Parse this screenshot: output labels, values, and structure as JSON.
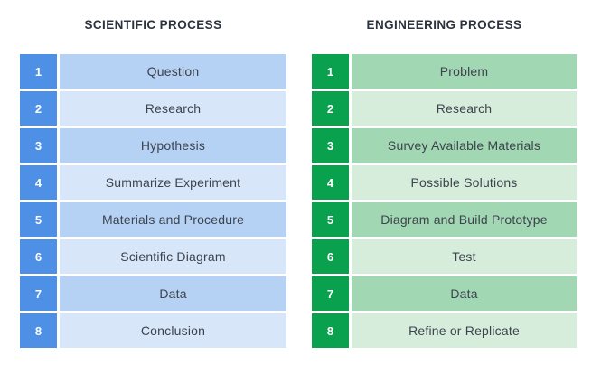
{
  "colors": {
    "background": "#ffffff",
    "title_text": "#2d333e",
    "step_text": "#3d434c",
    "number_text": "#ffffff"
  },
  "columns": [
    {
      "id": "scientific",
      "title": "SCIENTIFIC PROCESS",
      "accent": "#4d90e5",
      "row_bg_odd": "#b5d2f4",
      "row_bg_even": "#d8e6fa",
      "steps": [
        {
          "number": "1",
          "label": "Question"
        },
        {
          "number": "2",
          "label": "Research"
        },
        {
          "number": "3",
          "label": "Hypothesis"
        },
        {
          "number": "4",
          "label": "Summarize Experiment"
        },
        {
          "number": "5",
          "label": "Materials and Procedure"
        },
        {
          "number": "6",
          "label": "Scientific Diagram"
        },
        {
          "number": "7",
          "label": "Data"
        },
        {
          "number": "8",
          "label": "Conclusion"
        }
      ]
    },
    {
      "id": "engineering",
      "title": "ENGINEERING PROCESS",
      "accent": "#0aa14e",
      "row_bg_odd": "#a2d7b4",
      "row_bg_even": "#d6eddc",
      "steps": [
        {
          "number": "1",
          "label": "Problem"
        },
        {
          "number": "2",
          "label": "Research"
        },
        {
          "number": "3",
          "label": "Survey Available Materials"
        },
        {
          "number": "4",
          "label": "Possible Solutions"
        },
        {
          "number": "5",
          "label": "Diagram and Build Prototype"
        },
        {
          "number": "6",
          "label": "Test"
        },
        {
          "number": "7",
          "label": "Data"
        },
        {
          "number": "8",
          "label": "Refine or Replicate"
        }
      ]
    }
  ]
}
